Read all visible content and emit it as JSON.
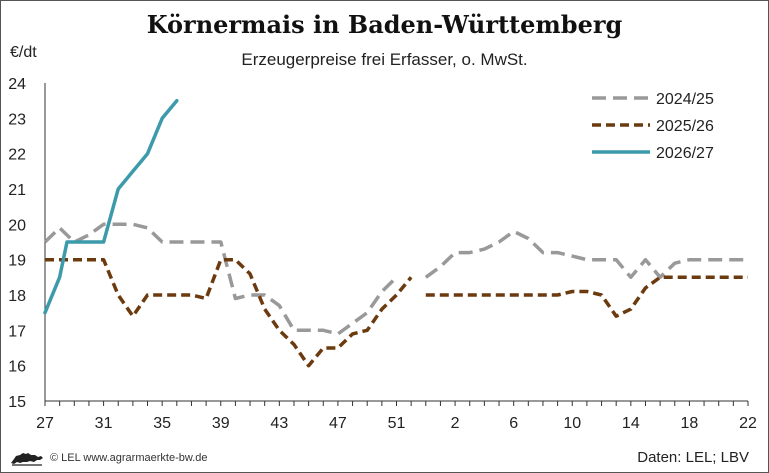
{
  "header": {
    "title": "Körnermais in Baden-Württemberg",
    "subtitle": "Erzeugerpreise frei Erfasser, o. MwSt.",
    "unit": "€/dt"
  },
  "footer": {
    "credit": "© LEL www.agrarmaerkte-bw.de",
    "source": "Daten: LEL; LBV",
    "logo_icon": "baden-wuerttemberg-lion-logo"
  },
  "chart_data": {
    "type": "line",
    "title": "Körnermais in Baden-Württemberg",
    "subtitle": "Erzeugerpreise frei Erfasser, o. MwSt.",
    "ylabel": "€/dt",
    "xlabel": "",
    "ylim": [
      15,
      24
    ],
    "yticks": [
      15,
      16,
      17,
      18,
      19,
      20,
      21,
      22,
      23,
      24
    ],
    "x_labels": [
      "27",
      "31",
      "35",
      "39",
      "43",
      "47",
      "51",
      "2",
      "6",
      "10",
      "14",
      "18",
      "22"
    ],
    "grid": false,
    "legend_position": "top-right",
    "series": [
      {
        "name": "2024/25",
        "color": "#999999",
        "style": "dashed",
        "segments": [
          [
            [
              0,
              19.5
            ],
            [
              1,
              19.9
            ],
            [
              2,
              19.5
            ],
            [
              3,
              19.7
            ],
            [
              4,
              20.0
            ],
            [
              5,
              20.0
            ],
            [
              6,
              20.0
            ],
            [
              7,
              19.9
            ],
            [
              8,
              19.5
            ],
            [
              9,
              19.5
            ],
            [
              10,
              19.5
            ],
            [
              11,
              19.5
            ],
            [
              12,
              19.5
            ],
            [
              13,
              17.9
            ],
            [
              14,
              18.0
            ],
            [
              15,
              18.0
            ],
            [
              16,
              17.7
            ],
            [
              17,
              17.0
            ],
            [
              18,
              17.0
            ],
            [
              19,
              17.0
            ],
            [
              20,
              16.9
            ],
            [
              21,
              17.2
            ],
            [
              22,
              17.5
            ],
            [
              23,
              18.1
            ],
            [
              24,
              18.5
            ]
          ],
          [
            [
              26,
              18.5
            ],
            [
              27,
              18.8
            ],
            [
              28,
              19.2
            ],
            [
              29,
              19.2
            ],
            [
              30,
              19.3
            ],
            [
              31,
              19.5
            ],
            [
              32,
              19.8
            ],
            [
              33,
              19.6
            ],
            [
              34,
              19.2
            ],
            [
              35,
              19.2
            ],
            [
              36,
              19.1
            ],
            [
              37,
              19.0
            ],
            [
              38,
              19.0
            ],
            [
              39,
              19.0
            ],
            [
              40,
              18.5
            ],
            [
              41,
              19.0
            ],
            [
              42,
              18.5
            ],
            [
              43,
              18.9
            ],
            [
              44,
              19.0
            ],
            [
              45,
              19.0
            ],
            [
              46,
              19.0
            ],
            [
              47,
              19.0
            ],
            [
              48,
              19.0
            ]
          ]
        ]
      },
      {
        "name": "2025/26",
        "color": "#6b3a0e",
        "style": "dashed",
        "segments": [
          [
            [
              0,
              19.0
            ],
            [
              1,
              19.0
            ],
            [
              2,
              19.0
            ],
            [
              3,
              19.0
            ],
            [
              4,
              19.0
            ],
            [
              5,
              18.0
            ],
            [
              6,
              17.4
            ],
            [
              7,
              18.0
            ],
            [
              8,
              18.0
            ],
            [
              9,
              18.0
            ],
            [
              10,
              18.0
            ],
            [
              11,
              17.9
            ],
            [
              12,
              19.0
            ],
            [
              13,
              19.0
            ],
            [
              14,
              18.6
            ],
            [
              15,
              17.6
            ],
            [
              16,
              17.0
            ],
            [
              17,
              16.6
            ],
            [
              18,
              16.0
            ],
            [
              19,
              16.5
            ],
            [
              20,
              16.5
            ],
            [
              21,
              16.9
            ],
            [
              22,
              17.0
            ],
            [
              23,
              17.6
            ],
            [
              24,
              18.0
            ],
            [
              25,
              18.5
            ]
          ],
          [
            [
              26,
              18.0
            ],
            [
              27,
              18.0
            ],
            [
              28,
              18.0
            ],
            [
              29,
              18.0
            ],
            [
              30,
              18.0
            ],
            [
              31,
              18.0
            ],
            [
              32,
              18.0
            ],
            [
              33,
              18.0
            ],
            [
              34,
              18.0
            ],
            [
              35,
              18.0
            ],
            [
              36,
              18.1
            ],
            [
              37,
              18.1
            ],
            [
              38,
              18.0
            ],
            [
              39,
              17.4
            ],
            [
              40,
              17.6
            ],
            [
              41,
              18.2
            ],
            [
              42,
              18.5
            ],
            [
              43,
              18.5
            ],
            [
              44,
              18.5
            ],
            [
              45,
              18.5
            ],
            [
              46,
              18.5
            ],
            [
              47,
              18.5
            ],
            [
              48,
              18.5
            ]
          ]
        ]
      },
      {
        "name": "2026/27",
        "color": "#3c9aab",
        "style": "solid",
        "segments": [
          [
            [
              0,
              17.5
            ],
            [
              1,
              18.5
            ],
            [
              1.5,
              19.5
            ],
            [
              2,
              19.5
            ],
            [
              3,
              19.5
            ],
            [
              4,
              19.5
            ],
            [
              5,
              21.0
            ],
            [
              6,
              21.5
            ],
            [
              7,
              22.0
            ],
            [
              8,
              23.0
            ],
            [
              9,
              23.5
            ]
          ]
        ]
      }
    ]
  }
}
